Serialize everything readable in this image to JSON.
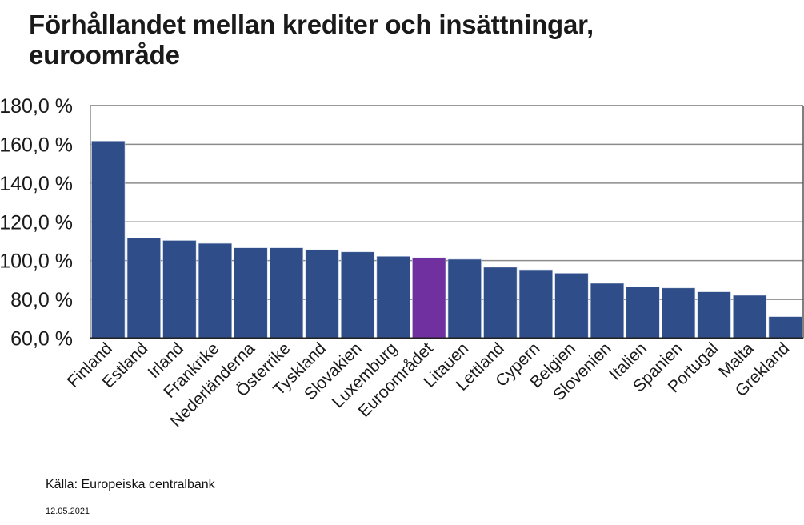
{
  "title_lines": [
    "Förhållandet mellan krediter och insättningar,",
    "euroområde"
  ],
  "source": "Källa: Europeiska centralbank",
  "date": "12.05.2021",
  "colors": {
    "bar": "#2F4E89",
    "highlight": "#7030A0",
    "grid": "#8c8c8c",
    "axis": "#222222"
  },
  "chart_data": {
    "type": "bar",
    "title": "Förhållandet mellan krediter och insättningar, euroområde",
    "xlabel": "",
    "ylabel": "",
    "ylim": [
      60,
      180
    ],
    "yticks": [
      60,
      80,
      100,
      120,
      140,
      160,
      180
    ],
    "ytick_labels": [
      "60,0 %",
      "80,0 %",
      "100,0 %",
      "120,0 %",
      "140,0 %",
      "160,0 %",
      "180,0 %"
    ],
    "grid": true,
    "categories": [
      "Finland",
      "Estland",
      "Irland",
      "Frankrike",
      "Nederländerna",
      "Österrike",
      "Tyskland",
      "Slovakien",
      "Luxemburg",
      "Euroområdet",
      "Litauen",
      "Lettland",
      "Cypern",
      "Belgien",
      "Slovenien",
      "Italien",
      "Spanien",
      "Portugal",
      "Malta",
      "Grekland"
    ],
    "values": [
      161.7,
      111.7,
      110.4,
      108.9,
      106.6,
      106.6,
      105.6,
      104.5,
      102.2,
      101.5,
      100.7,
      96.6,
      95.3,
      93.5,
      88.3,
      86.4,
      85.9,
      83.9,
      82.1,
      71.1
    ],
    "highlight_category": "Euroområdet",
    "unit": "%"
  }
}
